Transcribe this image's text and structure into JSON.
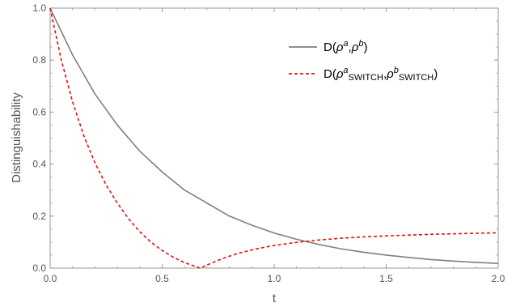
{
  "chart_data": {
    "type": "line",
    "xlabel": "t",
    "ylabel": "Distinguishability",
    "xlim": [
      0,
      2
    ],
    "ylim": [
      0,
      1
    ],
    "x_ticks": [
      "0.0",
      "0.5",
      "1.0",
      "1.5",
      "2.0"
    ],
    "y_ticks": [
      "0.0",
      "0.2",
      "0.4",
      "0.6",
      "0.8",
      "1.0"
    ],
    "grid": false,
    "legend_position": "top-right",
    "series": [
      {
        "legend": {
          "main": "D(",
          "s1": "ρ",
          "sup1": "a",
          "sep": ",",
          "s2": "ρ",
          "sup2": "b",
          "close": ")"
        },
        "color": "#808080",
        "style": "solid",
        "x": [
          0,
          0.1,
          0.2,
          0.3,
          0.4,
          0.5,
          0.6,
          0.7,
          0.8,
          0.9,
          1.0,
          1.1,
          1.2,
          1.3,
          1.4,
          1.5,
          1.6,
          1.7,
          1.8,
          1.9,
          2.0
        ],
        "values": [
          1.0,
          0.82,
          0.67,
          0.55,
          0.45,
          0.37,
          0.3,
          0.25,
          0.2,
          0.165,
          0.135,
          0.111,
          0.091,
          0.074,
          0.061,
          0.05,
          0.041,
          0.033,
          0.027,
          0.022,
          0.018
        ]
      },
      {
        "legend": {
          "main": "D(",
          "s1": "ρ",
          "sup1": "a",
          "sub1": "SWITCH",
          "sep": ",",
          "s2": "ρ",
          "sup2": "b",
          "sub2": "SWITCH",
          "close": ")"
        },
        "color": "#e01010",
        "style": "dashed",
        "x": [
          0,
          0.05,
          0.1,
          0.15,
          0.2,
          0.25,
          0.3,
          0.35,
          0.4,
          0.45,
          0.5,
          0.55,
          0.6,
          0.65,
          0.67,
          0.7,
          0.75,
          0.8,
          0.85,
          0.9,
          0.95,
          1.0,
          1.1,
          1.2,
          1.3,
          1.4,
          1.5,
          1.6,
          1.7,
          1.8,
          1.9,
          2.0
        ],
        "values": [
          1.0,
          0.8,
          0.64,
          0.51,
          0.405,
          0.32,
          0.25,
          0.19,
          0.14,
          0.1,
          0.068,
          0.042,
          0.021,
          0.006,
          0.0,
          0.012,
          0.03,
          0.046,
          0.059,
          0.07,
          0.079,
          0.087,
          0.099,
          0.108,
          0.115,
          0.12,
          0.124,
          0.127,
          0.13,
          0.132,
          0.134,
          0.136
        ]
      }
    ]
  }
}
